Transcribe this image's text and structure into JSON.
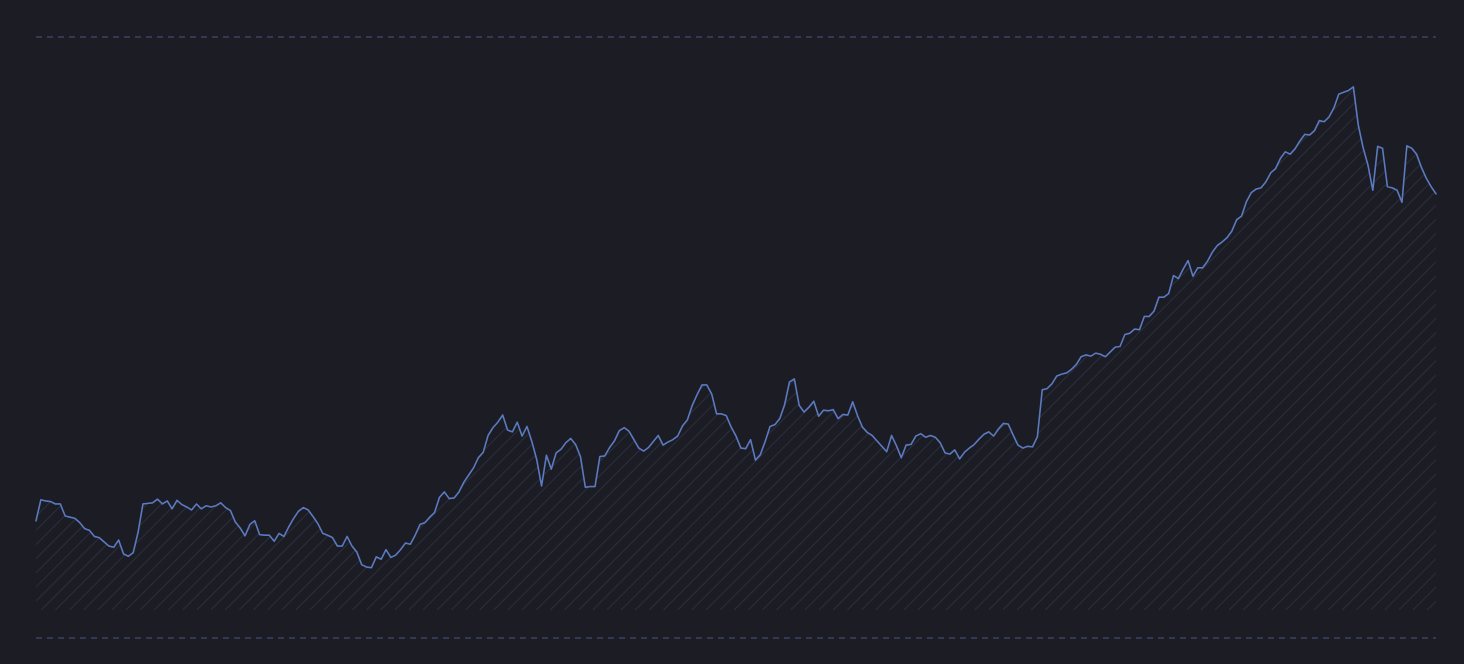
{
  "colors": {
    "background": "#1c1c24",
    "line": "#5b7ac0",
    "gridline": "#4a5680",
    "hatch": "#2a2e3e"
  },
  "chart_data": {
    "type": "area",
    "title": "",
    "xlabel": "",
    "ylabel": "",
    "grid": false,
    "legend": "none",
    "ylim": [
      0,
      100
    ],
    "reference_lines": [
      100,
      0
    ],
    "series": [
      {
        "values": [
          19.5,
          23,
          22.8,
          22.7,
          22.3,
          22.3,
          20.3,
          20.1,
          19.9,
          19.2,
          18.2,
          17.9,
          16.9,
          16.7,
          16,
          15.3,
          15.1,
          16.3,
          14,
          13.6,
          14.2,
          17.6,
          22.3,
          22.4,
          22.5,
          23.1,
          22.3,
          22.8,
          21.5,
          22.9,
          22.2,
          21.8,
          21.3,
          22.3,
          21.5,
          22,
          21.8,
          22,
          22.5,
          21.7,
          21.2,
          19.3,
          18.3,
          17,
          18.9,
          19.5,
          17.2,
          17.1,
          17.1,
          16.1,
          17.4,
          16.9,
          18.5,
          19.9,
          21.1,
          21.7,
          21.3,
          20.2,
          19,
          17.4,
          17.1,
          16.7,
          15.3,
          15.3,
          16.9,
          15.3,
          14.3,
          12.2,
          11.8,
          11.7,
          13.5,
          13.1,
          14.7,
          13.4,
          13.8,
          14.7,
          15.8,
          15.6,
          17.1,
          18.9,
          19.2,
          20.1,
          20.9,
          23.4,
          24.3,
          23.2,
          23.3,
          24.3,
          25.9,
          27.1,
          28.3,
          30,
          30.9,
          33.7,
          35,
          35.9,
          37.1,
          34.6,
          34.3,
          35.9,
          33.6,
          35.2,
          32.7,
          29.7,
          25.3,
          30.4,
          28.1,
          30.8,
          31.4,
          32.5,
          33.2,
          32.2,
          30.2,
          25.1,
          25.2,
          25.2,
          30.2,
          30.3,
          31.7,
          32.8,
          34.5,
          35,
          34.4,
          33,
          31.6,
          31.1,
          31.7,
          32.7,
          33.7,
          32.1,
          32.6,
          33,
          33.6,
          35.3,
          36.3,
          38.7,
          40.5,
          42.1,
          42.1,
          40.6,
          37.3,
          37.3,
          37,
          35.1,
          33.6,
          31.6,
          31.5,
          33,
          29.6,
          30.5,
          32.7,
          35.2,
          35.5,
          36.5,
          38.8,
          42.6,
          43.1,
          38.7,
          37.6,
          38.4,
          39.4,
          36.9,
          37.9,
          37.8,
          38,
          36.5,
          37.2,
          37.1,
          39.3,
          37,
          35.1,
          34.2,
          33.7,
          32.8,
          31.9,
          31,
          33.7,
          32,
          30,
          32.1,
          32.2,
          33.6,
          34,
          33.4,
          33.7,
          33.4,
          32.5,
          30.8,
          30.6,
          31.3,
          29.8,
          30.9,
          31.6,
          32.2,
          33.1,
          33.9,
          34.3,
          33.6,
          34.8,
          35.7,
          35.6,
          33.8,
          32.1,
          31.6,
          31.9,
          31.8,
          33.5,
          41.3,
          41.5,
          42.3,
          43.6,
          43.9,
          44.1,
          44.7,
          45.5,
          46.8,
          47.1,
          46.9,
          47.4,
          47.2,
          46.8,
          47.6,
          48.4,
          48.5,
          50.5,
          50.7,
          51.4,
          51.3,
          53.5,
          53.5,
          54.4,
          56.7,
          56.7,
          57.3,
          60.3,
          59.8,
          61.4,
          62.8,
          60.2,
          61.6,
          61.6,
          62.7,
          64.2,
          65.3,
          65.9,
          66.6,
          67.7,
          69.6,
          70.2,
          72.6,
          74.1,
          74.7,
          74.9,
          75.9,
          77.4,
          78.1,
          79.8,
          80.9,
          80.5,
          81.4,
          82.7,
          83.8,
          83.7,
          84.4,
          86.1,
          85.9,
          86.7,
          88.2,
          90.5,
          90.8,
          91.1,
          91.7,
          85.4,
          81.6,
          78.7,
          74.5,
          81.8,
          81.5,
          75.1,
          74.9,
          74.5,
          72.5,
          81.9,
          81.5,
          80.5,
          78.3,
          76.5,
          75.1,
          73.9
        ]
      }
    ]
  }
}
